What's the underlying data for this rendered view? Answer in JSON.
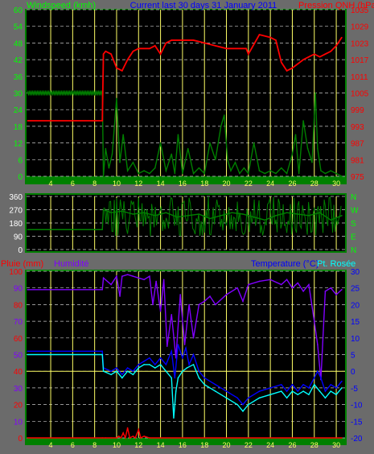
{
  "chart_data": [
    {
      "type": "line",
      "title": "Current last 30 days 31 January 2011",
      "x_ticks": [
        "4",
        "6",
        "8",
        "10",
        "12",
        "14",
        "16",
        "18",
        "20",
        "22",
        "24",
        "26",
        "28",
        "30"
      ],
      "xlim": [
        1.8,
        30.8
      ],
      "left_axis": {
        "label": "Windspeed (kmh)",
        "ylim": [
          0,
          60
        ],
        "ticks": [
          "0",
          "6",
          "12",
          "18",
          "24",
          "30",
          "36",
          "42",
          "48",
          "54",
          "60"
        ]
      },
      "right_axis": {
        "label": "Pression QNH (hPa)",
        "ylim": [
          975,
          1035
        ],
        "ticks": [
          "975",
          "981",
          "987",
          "993",
          "999",
          "1005",
          "1011",
          "1017",
          "1023",
          "1029",
          "1035"
        ]
      },
      "series": [
        {
          "name": "Windspeed (kmh)",
          "color": "#008000",
          "axis": "left",
          "style": "gust-band",
          "x": [
            1.9,
            8.7,
            8.8,
            9.0,
            9.3,
            9.6,
            10.0,
            10.3,
            10.6,
            11.0,
            11.5,
            12.0,
            12.5,
            13.0,
            13.5,
            14.0,
            14.5,
            15.0,
            15.3,
            15.6,
            16.0,
            16.5,
            17.0,
            17.5,
            18.0,
            18.5,
            19.0,
            19.5,
            19.8,
            20.1,
            20.4,
            20.8,
            21.2,
            21.6,
            22.0,
            22.5,
            23.0,
            23.5,
            24.0,
            24.5,
            25.0,
            25.5,
            26.0,
            26.3,
            26.6,
            27.0,
            27.4,
            27.8,
            28.1,
            28.3,
            28.6,
            29.0,
            29.5,
            30.0,
            30.5
          ],
          "values": [
            30,
            30,
            0,
            10,
            3,
            8,
            28,
            5,
            15,
            2,
            5,
            1,
            2,
            1,
            3,
            12,
            2,
            8,
            1,
            15,
            1,
            10,
            1,
            3,
            1,
            12,
            6,
            18,
            22,
            6,
            2,
            5,
            1,
            3,
            1,
            12,
            2,
            1,
            2,
            1,
            3,
            1,
            8,
            15,
            1,
            20,
            10,
            5,
            30,
            10,
            2,
            1,
            2,
            1,
            0
          ]
        },
        {
          "name": "Pression QNH (hPa)",
          "color": "#ff0000",
          "axis": "right",
          "x": [
            1.9,
            8.7,
            8.8,
            9.0,
            9.5,
            10.0,
            10.5,
            11.0,
            11.5,
            12.0,
            12.5,
            13.0,
            13.5,
            14.0,
            14.5,
            15.0,
            16.0,
            17.0,
            18.0,
            19.0,
            20.0,
            21.0,
            21.8,
            22.0,
            23.0,
            24.0,
            24.5,
            25.0,
            25.5,
            26.0,
            27.0,
            28.0,
            28.5,
            29.0,
            29.5,
            30.0,
            30.5
          ],
          "values": [
            995,
            995,
            1019,
            1020,
            1019,
            1014,
            1013,
            1017,
            1020,
            1021,
            1021,
            1021,
            1022,
            1019,
            1023,
            1024,
            1024,
            1024,
            1023,
            1022,
            1021,
            1021,
            1021,
            1019,
            1026,
            1025,
            1024,
            1016,
            1013,
            1014,
            1017,
            1019,
            1018,
            1019,
            1020,
            1022,
            1025
          ]
        }
      ]
    },
    {
      "type": "line",
      "xlim": [
        1.8,
        30.8
      ],
      "left_axis": {
        "label": "",
        "ylim": [
          0,
          360
        ],
        "ticks": [
          "0",
          "90",
          "180",
          "270",
          "360"
        ]
      },
      "right_axis": {
        "label": "",
        "ticks": [
          "N",
          "E",
          "S",
          "W",
          "N"
        ]
      },
      "series": [
        {
          "name": "Wind direction",
          "color": "#008000",
          "axis": "left",
          "style": "noisy",
          "x": [
            1.9,
            8.7,
            8.8,
            9.5,
            10.5,
            11.5,
            12.5,
            13.5,
            14.5,
            15.5,
            16.5,
            17.5,
            18.5,
            19.5,
            20.5,
            21.5,
            22.5,
            23.5,
            24.5,
            25.5,
            26.5,
            27.5,
            28.5,
            29.5,
            30.5
          ],
          "values": [
            135,
            135,
            270,
            250,
            260,
            240,
            250,
            230,
            250,
            220,
            230,
            240,
            210,
            230,
            250,
            240,
            220,
            200,
            230,
            250,
            240,
            230,
            250,
            200,
            230
          ]
        }
      ]
    },
    {
      "type": "line",
      "xlim": [
        1.8,
        30.8
      ],
      "left_axis": {
        "labels": [
          "Pluie (mm)",
          "Humidité"
        ],
        "ylim": [
          0,
          100
        ],
        "ticks": [
          "0",
          "10",
          "20",
          "30",
          "40",
          "50",
          "60",
          "70",
          "80",
          "90",
          "100"
        ]
      },
      "right_axis": {
        "labels": [
          "Temperature (°C)",
          "Pt. Rosée"
        ],
        "ylim": [
          -20,
          30
        ],
        "ticks": [
          "-20",
          "-15",
          "-10",
          "-5",
          "0",
          "5",
          "10",
          "15",
          "20",
          "25",
          "30"
        ]
      },
      "series": [
        {
          "name": "Humidité",
          "color": "#8000ff",
          "axis": "left",
          "x": [
            1.9,
            8.7,
            8.8,
            9.5,
            10.0,
            10.3,
            10.5,
            11.0,
            11.5,
            12.0,
            12.5,
            13.0,
            13.3,
            13.6,
            14.0,
            14.3,
            14.6,
            15.0,
            15.4,
            15.8,
            16.2,
            16.6,
            17.0,
            17.5,
            18.0,
            18.5,
            19.0,
            20.0,
            21.0,
            21.5,
            22.0,
            23.0,
            24.0,
            25.0,
            25.5,
            26.0,
            26.5,
            27.0,
            27.5,
            28.0,
            28.3,
            28.6,
            29.0,
            29.5,
            30.0,
            30.5
          ],
          "values": [
            89,
            89,
            96,
            92,
            97,
            85,
            97,
            98,
            97,
            96,
            95,
            97,
            80,
            94,
            76,
            95,
            55,
            74,
            48,
            86,
            56,
            80,
            60,
            80,
            82,
            85,
            80,
            86,
            90,
            82,
            92,
            94,
            95,
            92,
            95,
            90,
            93,
            88,
            92,
            70,
            56,
            35,
            88,
            90,
            86,
            89
          ]
        },
        {
          "name": "Temperature (°C)",
          "color": "#0000ff",
          "axis": "right",
          "x": [
            1.9,
            8.7,
            8.8,
            9.5,
            10.0,
            10.5,
            11.0,
            11.5,
            12.0,
            12.5,
            13.0,
            13.5,
            14.0,
            14.5,
            15.0,
            15.3,
            15.6,
            16.0,
            16.3,
            16.6,
            17.0,
            17.5,
            18.0,
            19.0,
            20.0,
            21.0,
            21.5,
            22.0,
            23.0,
            24.0,
            25.0,
            25.5,
            26.0,
            26.5,
            27.0,
            27.5,
            28.0,
            28.3,
            28.6,
            29.0,
            29.5,
            30.0,
            30.5
          ],
          "values": [
            6,
            6,
            1,
            0,
            1,
            -1,
            1,
            0,
            2,
            3,
            4,
            2,
            4,
            2,
            6,
            -2,
            8,
            4,
            7,
            2,
            5,
            0,
            -2,
            -4,
            -6,
            -8,
            -10,
            -8,
            -6,
            -5,
            -4,
            -6,
            -4,
            -6,
            -4,
            -5,
            -2,
            0,
            -2,
            -6,
            -4,
            -5,
            -3
          ]
        },
        {
          "name": "Pt. Rosée",
          "color": "#00ffff",
          "axis": "right",
          "x": [
            1.9,
            8.7,
            8.8,
            9.5,
            10.0,
            10.5,
            11.0,
            11.5,
            12.0,
            12.5,
            13.0,
            13.5,
            14.0,
            14.5,
            15.0,
            15.2,
            15.4,
            15.6,
            16.0,
            16.4,
            17.0,
            17.5,
            18.0,
            19.0,
            20.0,
            21.0,
            21.5,
            22.0,
            23.0,
            24.0,
            25.0,
            25.5,
            26.0,
            26.5,
            27.0,
            27.5,
            28.0,
            28.5,
            29.0,
            29.5,
            30.0,
            30.5
          ],
          "values": [
            5,
            5,
            0,
            -1,
            0,
            -2,
            0,
            -1,
            1,
            2,
            2,
            1,
            2,
            0,
            -2,
            -14,
            -6,
            -2,
            0,
            1,
            2,
            -2,
            -4,
            -6,
            -8,
            -10,
            -12,
            -10,
            -8,
            -7,
            -6,
            -8,
            -6,
            -7,
            -6,
            -7,
            -4,
            -6,
            -8,
            -6,
            -7,
            -5
          ]
        },
        {
          "name": "Pluie (mm)",
          "color": "#ff0000",
          "axis": "left",
          "x": [
            1.9,
            8.7,
            9.0,
            9.5,
            10.0,
            10.2,
            10.4,
            10.6,
            10.8,
            11.0,
            11.2,
            11.5,
            11.7,
            12.0,
            12.2,
            12.5,
            13.0,
            30.5
          ],
          "values": [
            0,
            0,
            0,
            0,
            0,
            1,
            0,
            3,
            0,
            6,
            0,
            1,
            0,
            5,
            0,
            1,
            0,
            0
          ]
        }
      ]
    }
  ]
}
